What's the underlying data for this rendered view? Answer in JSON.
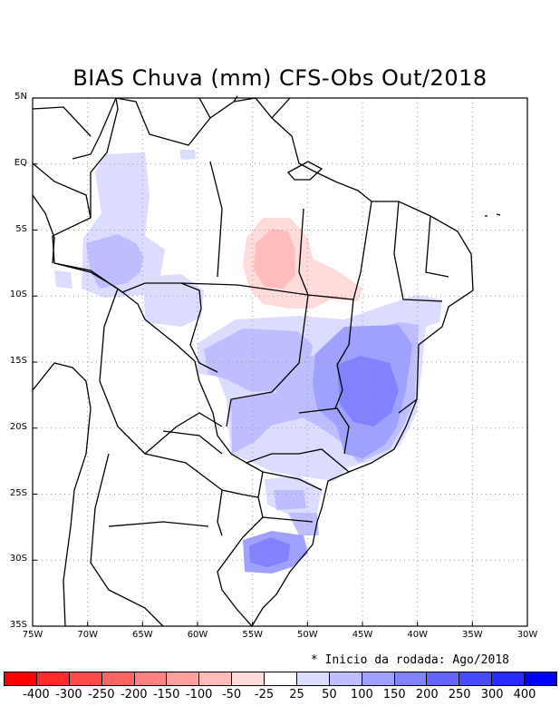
{
  "title": "BIAS Chuva (mm) CFS-Obs Out/2018",
  "note": "* Inicio da rodada: Ago/2018",
  "map": {
    "lon_range": [
      -75,
      -30
    ],
    "lat_range": [
      -35,
      5
    ],
    "x_ticks": [
      {
        "value": -75,
        "label": "75W"
      },
      {
        "value": -70,
        "label": "70W"
      },
      {
        "value": -65,
        "label": "65W"
      },
      {
        "value": -60,
        "label": "60W"
      },
      {
        "value": -55,
        "label": "55W"
      },
      {
        "value": -50,
        "label": "50W"
      },
      {
        "value": -45,
        "label": "45W"
      },
      {
        "value": -40,
        "label": "40W"
      },
      {
        "value": -35,
        "label": "35W"
      },
      {
        "value": -30,
        "label": "30W"
      }
    ],
    "y_ticks": [
      {
        "value": 5,
        "label": "5N"
      },
      {
        "value": 0,
        "label": "EQ"
      },
      {
        "value": -5,
        "label": "5S"
      },
      {
        "value": -10,
        "label": "10S"
      },
      {
        "value": -15,
        "label": "15S"
      },
      {
        "value": -20,
        "label": "20S"
      },
      {
        "value": -25,
        "label": "25S"
      },
      {
        "value": -30,
        "label": "30S"
      },
      {
        "value": -35,
        "label": "35S"
      }
    ],
    "grid": "dotted"
  },
  "colorbar": {
    "colors": [
      "#ff0000",
      "#ff2a2a",
      "#ff4a4a",
      "#ff6464",
      "#ff8282",
      "#ffa0a0",
      "#ffbcbc",
      "#ffdcdc",
      "#ffffff",
      "#dcdcff",
      "#bebeff",
      "#a0a0ff",
      "#8282ff",
      "#6464ff",
      "#4a4aff",
      "#2a2aff",
      "#0000ff"
    ],
    "labels": [
      "-400",
      "-300",
      "-250",
      "-200",
      "-150",
      "-100",
      "-50",
      "-25",
      "25",
      "50",
      "100",
      "150",
      "200",
      "250",
      "300",
      "400"
    ]
  }
}
